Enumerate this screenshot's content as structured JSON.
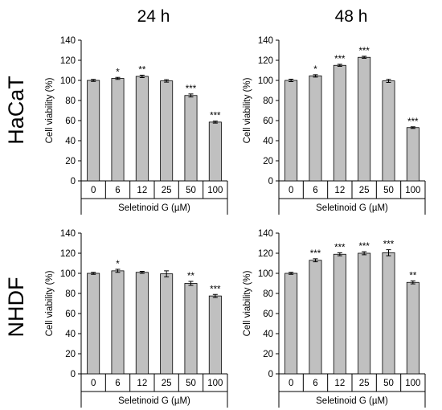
{
  "column_titles": [
    "24 h",
    "48 h"
  ],
  "row_titles": [
    "HaCaT",
    "NHDF"
  ],
  "chart_data": [
    {
      "type": "bar",
      "categories": [
        "0",
        "6",
        "12",
        "25",
        "50",
        "100"
      ],
      "values": [
        100,
        102,
        104,
        99.5,
        85,
        58.5
      ],
      "errors": [
        1,
        1,
        1.2,
        1.2,
        1.5,
        1
      ],
      "significance": [
        "",
        "*",
        "**",
        "",
        "***",
        "***"
      ],
      "xlabel": "Seletinoid G (µM)",
      "ylabel": "Cell viability (%)",
      "ylim": [
        0,
        140
      ],
      "yticks": [
        0,
        20,
        40,
        60,
        80,
        100,
        120,
        140
      ],
      "grid": false,
      "bar_color": "#c0c0c0"
    },
    {
      "type": "bar",
      "categories": [
        "0",
        "6",
        "12",
        "25",
        "50",
        "100"
      ],
      "values": [
        100,
        104.5,
        115,
        123,
        99.5,
        53
      ],
      "errors": [
        1.2,
        1.2,
        1,
        1,
        1.5,
        0.8
      ],
      "significance": [
        "",
        "*",
        "***",
        "***",
        "",
        "***"
      ],
      "xlabel": "Seletinoid G (µM)",
      "ylabel": "Cell viability (%)",
      "ylim": [
        0,
        140
      ],
      "yticks": [
        0,
        20,
        40,
        60,
        80,
        100,
        120,
        140
      ],
      "grid": false,
      "bar_color": "#c0c0c0"
    },
    {
      "type": "bar",
      "categories": [
        "0",
        "6",
        "12",
        "25",
        "50",
        "100"
      ],
      "values": [
        100,
        102.5,
        101,
        99.5,
        90,
        77.5
      ],
      "errors": [
        1,
        1.5,
        1,
        3,
        2,
        1.5
      ],
      "significance": [
        "",
        "*",
        "",
        "",
        "**",
        "***"
      ],
      "xlabel": "Seletinoid G (µM)",
      "ylabel": "Cell viability (%)",
      "ylim": [
        0,
        140
      ],
      "yticks": [
        0,
        20,
        40,
        60,
        80,
        100,
        120,
        140
      ],
      "grid": false,
      "bar_color": "#c0c0c0"
    },
    {
      "type": "bar",
      "categories": [
        "0",
        "6",
        "12",
        "25",
        "50",
        "100"
      ],
      "values": [
        100,
        113,
        119,
        120,
        120.5,
        91
      ],
      "errors": [
        1,
        1.5,
        1.5,
        1.5,
        3,
        1.5
      ],
      "significance": [
        "",
        "***",
        "***",
        "***",
        "***",
        "**"
      ],
      "xlabel": "Seletinoid G (µM)",
      "ylabel": "Cell viability (%)",
      "ylim": [
        0,
        140
      ],
      "yticks": [
        0,
        20,
        40,
        60,
        80,
        100,
        120,
        140
      ],
      "grid": false,
      "bar_color": "#c0c0c0"
    }
  ]
}
